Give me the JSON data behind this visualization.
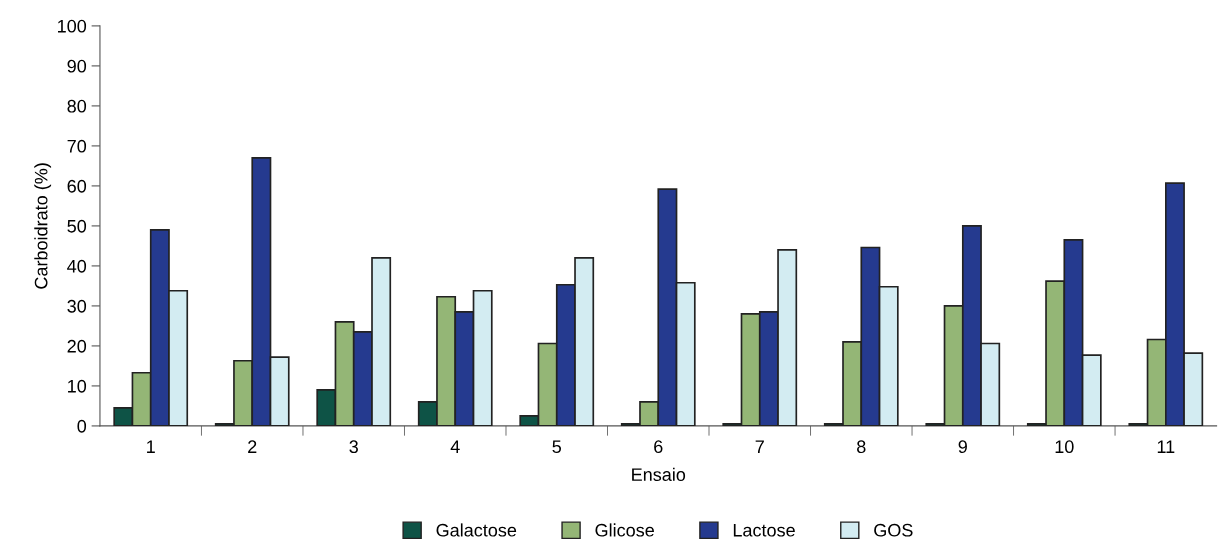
{
  "chart_data": {
    "type": "bar",
    "xlabel": "Ensaio",
    "ylabel": "Carboidrato (%)",
    "categories": [
      "1",
      "2",
      "3",
      "4",
      "5",
      "6",
      "7",
      "8",
      "9",
      "10",
      "11"
    ],
    "series": [
      {
        "name": "Galactose",
        "color": "#0e5346",
        "values": [
          4.5,
          0.5,
          9,
          6,
          2.5,
          0.5,
          0.5,
          0.5,
          0.5,
          0.5,
          0.5
        ]
      },
      {
        "name": "Glicose",
        "color": "#94b676",
        "values": [
          13.3,
          16.3,
          26,
          32.3,
          20.6,
          6,
          28,
          21,
          30,
          36.2,
          21.6
        ]
      },
      {
        "name": "Lactose",
        "color": "#253a8f",
        "values": [
          49,
          67,
          23.5,
          28.5,
          35.3,
          59.2,
          28.5,
          44.6,
          50,
          46.5,
          60.7
        ]
      },
      {
        "name": "GOS",
        "color": "#d3ecf2",
        "values": [
          33.8,
          17.2,
          42,
          33.8,
          42,
          35.8,
          44,
          34.8,
          20.6,
          17.7,
          18.2
        ]
      }
    ],
    "ylim": [
      0,
      100
    ],
    "yticks": [
      0,
      10,
      20,
      30,
      40,
      50,
      60,
      70,
      80,
      90,
      100
    ],
    "grid": false,
    "legend": "bottom"
  }
}
